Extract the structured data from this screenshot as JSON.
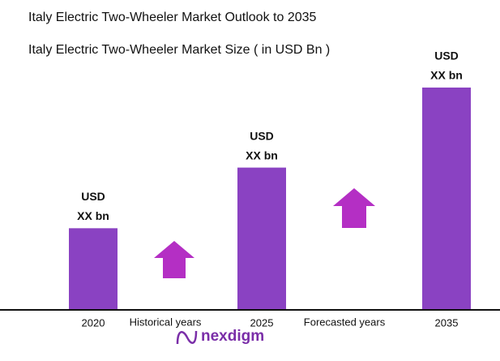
{
  "chart_data": {
    "type": "bar",
    "title": "Italy Electric Two-Wheeler Market Outlook to 2035",
    "subtitle": "Italy Electric Two-Wheeler Market Size ( in USD Bn )",
    "categories": [
      "2020",
      "2025",
      "2035"
    ],
    "values": [
      100,
      175,
      274
    ],
    "value_labels": [
      [
        "USD",
        "XX bn"
      ],
      [
        "USD",
        "XX bn"
      ],
      [
        "USD",
        "XX bn"
      ]
    ],
    "color": "#8a42c2",
    "ylim": [
      0,
      300
    ],
    "annotations": [
      "Historical years",
      "Forecasted years"
    ],
    "logo": "nexdigm"
  }
}
